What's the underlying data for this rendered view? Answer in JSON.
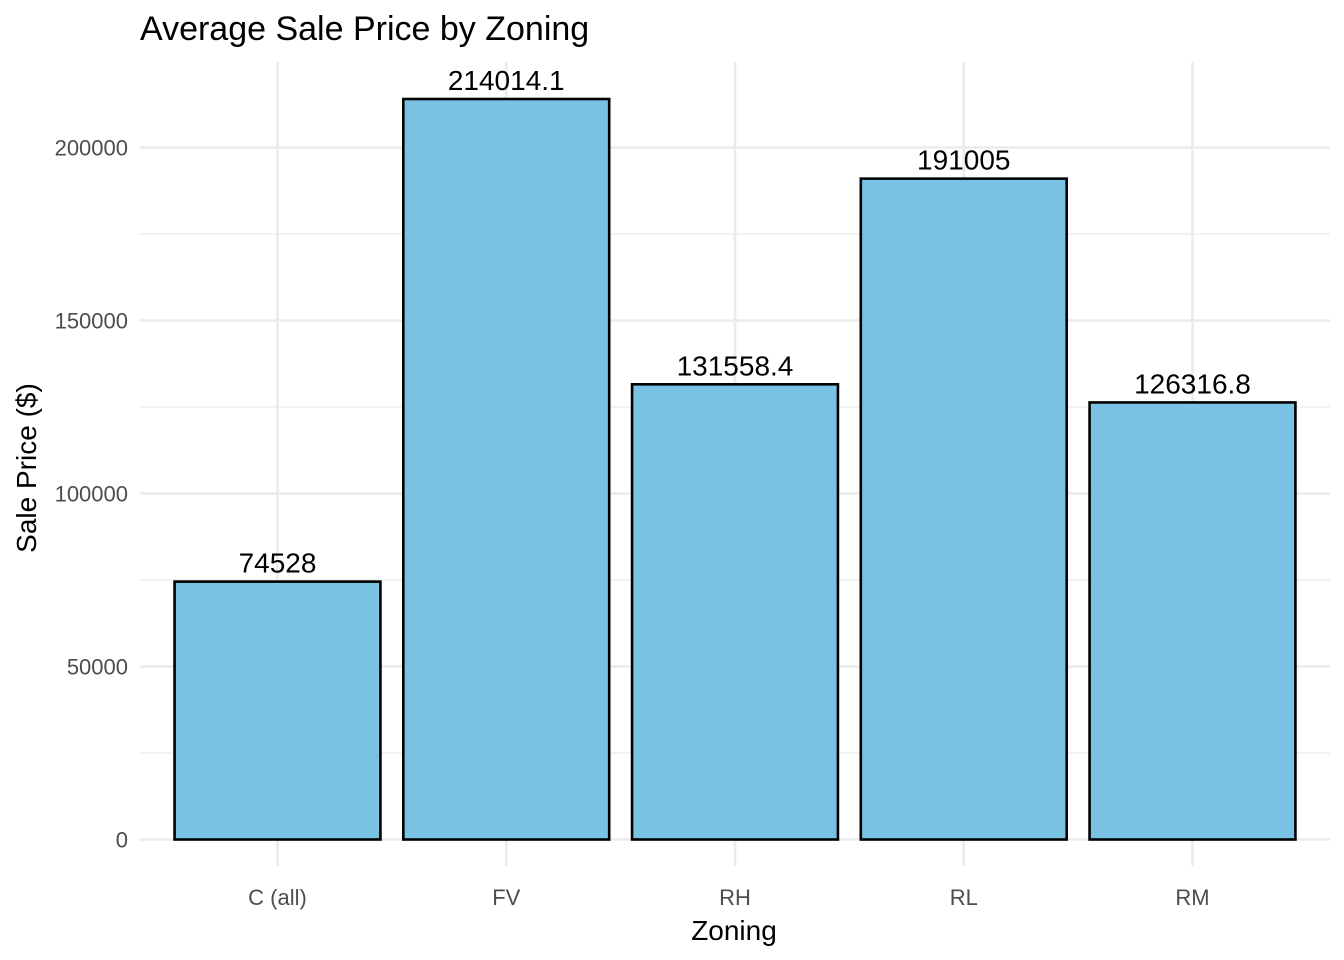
{
  "chart_data": {
    "type": "bar",
    "title": "Average Sale Price by Zoning",
    "xlabel": "Zoning",
    "ylabel": "Sale Price ($)",
    "categories": [
      "C (all)",
      "FV",
      "RH",
      "RL",
      "RM"
    ],
    "values": [
      74528,
      214014.1,
      131558.4,
      191005,
      126316.8
    ],
    "data_labels": [
      "74528",
      "214014.1",
      "131558.4",
      "191005",
      "126316.8"
    ],
    "ylim": [
      0,
      220000
    ],
    "yticks": [
      0,
      50000,
      100000,
      150000,
      200000
    ],
    "ytick_labels": [
      "0",
      "50000",
      "100000",
      "150000",
      "200000"
    ],
    "grid": true,
    "legend": "none",
    "colors": {
      "bar_fill": "#7ac2e3",
      "bar_stroke": "#000000",
      "grid": "#ebebeb"
    }
  }
}
